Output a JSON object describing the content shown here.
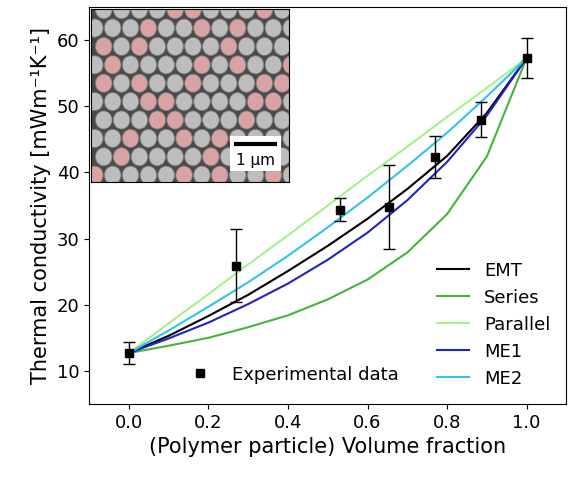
{
  "chart_data": {
    "type": "line",
    "x_label": "(Polymer particle) Volume fraction",
    "y_label": "Thermal conductivity [mWm⁻¹K⁻¹]",
    "annotations": [
      "1 µm"
    ],
    "xlim": [
      -0.1,
      1.1
    ],
    "xticks": [
      {
        "value": 0,
        "label": "0.0"
      },
      0.2,
      0.4,
      0.6,
      0.8,
      {
        "value": 1,
        "label": "1.0"
      }
    ],
    "ylim": [
      5,
      65
    ],
    "yticks": [
      10,
      20,
      30,
      40,
      50,
      60
    ],
    "legend": "lower right",
    "series": [
      {
        "name": "EMT",
        "type": "line",
        "color": "#000000",
        "line_style": "solid",
        "x": [
          0,
          0.1,
          0.2,
          0.3,
          0.4,
          0.5,
          0.6,
          0.7,
          0.8,
          0.9,
          1.0
        ],
        "values": [
          12.7,
          15.3,
          18.3,
          21.5,
          25.1,
          28.9,
          33.0,
          37.5,
          42.5,
          49.0,
          57.3
        ]
      },
      {
        "name": "Series",
        "type": "line",
        "color": "#44b53a",
        "line_style": "solid",
        "x": [
          0,
          0.1,
          0.2,
          0.3,
          0.4,
          0.5,
          0.6,
          0.7,
          0.8,
          0.9,
          1.0
        ],
        "values": [
          12.7,
          13.8,
          15.0,
          16.6,
          18.4,
          20.8,
          23.8,
          27.9,
          33.7,
          42.4,
          57.3
        ]
      },
      {
        "name": "Parallel",
        "type": "line",
        "color": "#a6f28a",
        "line_style": "solid",
        "x": [
          0,
          0.1,
          0.2,
          0.3,
          0.4,
          0.5,
          0.6,
          0.7,
          0.8,
          0.9,
          1.0
        ],
        "values": [
          12.7,
          17.2,
          21.6,
          26.1,
          30.5,
          35.0,
          39.5,
          43.9,
          48.4,
          52.8,
          57.3
        ]
      },
      {
        "name": "ME1",
        "type": "line",
        "color": "#2222c8",
        "line_style": "solid",
        "x": [
          0,
          0.1,
          0.2,
          0.3,
          0.4,
          0.5,
          0.6,
          0.7,
          0.8,
          0.9,
          1.0
        ],
        "values": [
          12.7,
          14.9,
          17.3,
          20.1,
          23.2,
          26.8,
          30.9,
          35.8,
          41.6,
          48.6,
          57.3
        ]
      },
      {
        "name": "ME2",
        "type": "line",
        "color": "#33c3e8",
        "line_style": "solid",
        "x": [
          0,
          0.1,
          0.2,
          0.3,
          0.4,
          0.5,
          0.6,
          0.7,
          0.8,
          0.9,
          1.0
        ],
        "values": [
          12.7,
          16.1,
          19.7,
          23.4,
          27.4,
          31.7,
          36.2,
          41.0,
          46.0,
          51.5,
          57.3
        ]
      },
      {
        "name": "Experimental data",
        "type": "scatter",
        "color": "#000000",
        "marker": "square",
        "x": [
          0,
          0.27,
          0.53,
          0.655,
          0.77,
          0.885,
          1.0
        ],
        "values": [
          12.7,
          25.9,
          34.4,
          34.8,
          42.3,
          48.0,
          57.3
        ],
        "error": [
          1.6,
          5.5,
          1.8,
          6.3,
          3.2,
          2.7,
          3.0
        ]
      }
    ]
  }
}
